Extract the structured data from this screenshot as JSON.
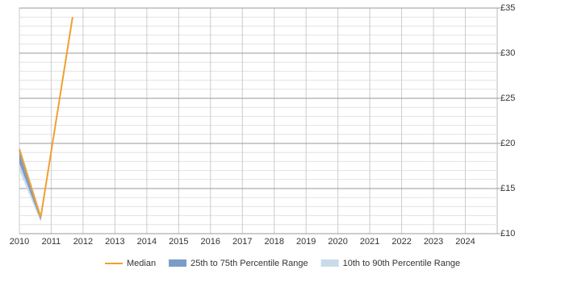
{
  "chart_data": {
    "type": "percentile-line",
    "x": [
      2010,
      2010.67,
      2011.67
    ],
    "series": [
      {
        "name": "10th to 90th Percentile Range",
        "color": "#c9dbeb",
        "low": [
          17,
          11.3,
          34
        ],
        "high": [
          19.8,
          12.2,
          34
        ]
      },
      {
        "name": "25th to 75th Percentile Range",
        "color": "#7b9cc6",
        "low": [
          17.8,
          11.5,
          34
        ],
        "high": [
          19.5,
          12,
          34
        ]
      },
      {
        "name": "Median",
        "color": "#f0a030",
        "values": [
          19.3,
          11.8,
          34
        ]
      }
    ],
    "legend_order": [
      2,
      1,
      0
    ],
    "xlim": [
      2010,
      2025
    ],
    "xticks": [
      2010,
      2011,
      2012,
      2013,
      2014,
      2015,
      2016,
      2017,
      2018,
      2019,
      2020,
      2021,
      2022,
      2023,
      2024
    ],
    "ylim": [
      10,
      35
    ],
    "yticks": [
      {
        "value": 10,
        "label": "£10"
      },
      {
        "value": 15,
        "label": "£15"
      },
      {
        "value": 20,
        "label": "£20"
      },
      {
        "value": 25,
        "label": "£25"
      },
      {
        "value": 30,
        "label": "£30"
      },
      {
        "value": 35,
        "label": "£35"
      }
    ],
    "grid": true,
    "minor_grid": true,
    "legend": "bottom"
  }
}
